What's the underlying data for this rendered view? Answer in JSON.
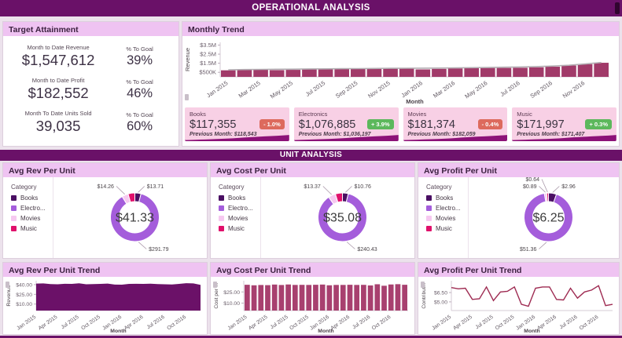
{
  "header": {
    "title": "OPERATIONAL ANALYSIS"
  },
  "section2": {
    "title": "UNIT ANALYSIS"
  },
  "target_attainment": {
    "title": "Target Attainment",
    "metrics": [
      {
        "label": "Month to Date Revenue",
        "value": "$1,547,612",
        "goal_label": "% To Goal",
        "goal": "39%"
      },
      {
        "label": "Month to Date Profit",
        "value": "$182,552",
        "goal_label": "% To Goal",
        "goal": "46%"
      },
      {
        "label": "Month To Date Units Sold",
        "value": "39,035",
        "goal_label": "% To Goal",
        "goal": "60%"
      }
    ]
  },
  "kpi_cards": [
    {
      "name": "Books",
      "value": "$117,355",
      "change": "- 1.0%",
      "direction": "down",
      "previous": "Previous Month: $118,543"
    },
    {
      "name": "Electronics",
      "value": "$1,076,885",
      "change": "+ 3.9%",
      "direction": "up",
      "previous": "Previous Month: $1,036,197"
    },
    {
      "name": "Movies",
      "value": "$181,374",
      "change": "- 0.4%",
      "direction": "down",
      "previous": "Previous Month: $182,059"
    },
    {
      "name": "Music",
      "value": "$171,997",
      "change": "+ 0.3%",
      "direction": "up",
      "previous": "Previous Month: $171,407"
    }
  ],
  "colors": {
    "accent": "#6a1168",
    "panel_header": "#efc3f2",
    "kpi_card_bg": "#f8d0e5",
    "kpi_wave": "#8c1278",
    "positive": "#5cb85c",
    "negative": "#dd6a5d",
    "monthly_bar": "#a13a69",
    "trend_line": "#b3aeb3",
    "books": "#4a0f63",
    "electronics": "#a45ddb",
    "movies": "#f6c8f0",
    "music": "#e0106b"
  },
  "chart_data": [
    {
      "id": "monthly-trend-chart",
      "type": "bar",
      "title": "Monthly Trend",
      "xlabel": "Month",
      "ylabel": "Revenue",
      "unit": "$M",
      "x": [
        "Jan 2015",
        "Feb 2015",
        "Mar 2015",
        "Apr 2015",
        "May 2015",
        "Jun 2015",
        "Jul 2015",
        "Aug 2015",
        "Sep 2015",
        "Oct 2015",
        "Nov 2015",
        "Dec 2015",
        "Jan 2016",
        "Feb 2016",
        "Mar 2016",
        "Apr 2016",
        "May 2016",
        "Jun 2016",
        "Jul 2016",
        "Aug 2016",
        "Sep 2016",
        "Oct 2016",
        "Nov 2016",
        "Dec 2016"
      ],
      "values": [
        0.72,
        0.79,
        0.83,
        0.74,
        0.77,
        0.86,
        0.88,
        0.88,
        0.9,
        0.92,
        0.92,
        0.93,
        0.82,
        0.88,
        0.93,
        0.96,
        0.98,
        0.98,
        1.0,
        1.05,
        1.12,
        1.25,
        1.4,
        1.55
      ],
      "trend_line": [
        0.78,
        0.8,
        0.82,
        0.84,
        0.85,
        0.87,
        0.88,
        0.9,
        0.91,
        0.92,
        0.94,
        0.95,
        0.96,
        0.97,
        0.99,
        1.01,
        1.03,
        1.06,
        1.09,
        1.13,
        1.19,
        1.28,
        1.42,
        1.58
      ],
      "ylim": [
        0,
        3.8
      ],
      "yticks": [
        {
          "v": 0.5,
          "label": "$500K"
        },
        {
          "v": 1.5,
          "label": "$1.5M"
        },
        {
          "v": 2.5,
          "label": "$2.5M"
        },
        {
          "v": 3.5,
          "label": "$3.5M"
        }
      ],
      "tick_every": 2,
      "color": "#a13a69",
      "legend_position": "collapsed"
    },
    {
      "id": "rev-donut-chart",
      "type": "pie",
      "title": "Avg Rev Per Unit",
      "center": "$41.33",
      "legend_title": "Category",
      "slices": [
        {
          "name": "Books",
          "display": "Books",
          "value": 13.71,
          "label": "$13.71",
          "color": "#4a0f63"
        },
        {
          "name": "Electronics",
          "display": "Electro...",
          "value": 291.79,
          "label": "$291.79",
          "color": "#a45ddb"
        },
        {
          "name": "Movies",
          "display": "Movies",
          "value": 14.26,
          "label": "$14.26",
          "color": "#f6c8f0"
        },
        {
          "name": "Music",
          "display": "Music",
          "value": 15.0,
          "label": "",
          "color": "#e0106b"
        }
      ]
    },
    {
      "id": "cost-donut-chart",
      "type": "pie",
      "title": "Avg Cost Per Unit",
      "center": "$35.08",
      "legend_title": "Category",
      "slices": [
        {
          "name": "Books",
          "display": "Books",
          "value": 10.76,
          "label": "$10.76",
          "color": "#4a0f63"
        },
        {
          "name": "Electronics",
          "display": "Electro...",
          "value": 240.43,
          "label": "$240.43",
          "color": "#a45ddb"
        },
        {
          "name": "Movies",
          "display": "Movies",
          "value": 13.37,
          "label": "$13.37",
          "color": "#f6c8f0"
        },
        {
          "name": "Music",
          "display": "Music",
          "value": 13.0,
          "label": "",
          "color": "#e0106b"
        }
      ]
    },
    {
      "id": "profit-donut-chart",
      "type": "pie",
      "title": "Avg Profit Per Unit",
      "center": "$6.25",
      "legend_title": "Category",
      "slices": [
        {
          "name": "Books",
          "display": "Books",
          "value": 2.96,
          "label": "$2.96",
          "color": "#4a0f63"
        },
        {
          "name": "Electronics",
          "display": "Electro...",
          "value": 51.36,
          "label": "$51.36",
          "color": "#a45ddb"
        },
        {
          "name": "Movies",
          "display": "Movies",
          "value": 0.89,
          "label": "$0.89",
          "color": "#f6c8f0"
        },
        {
          "name": "Music",
          "display": "Music",
          "value": 0.64,
          "label": "$0.64",
          "color": "#e0106b"
        }
      ]
    },
    {
      "id": "rev-trend-chart",
      "type": "area",
      "title": "Avg Rev Per Unit Trend",
      "xlabel": "Month",
      "ylabel": "Revenue",
      "x": [
        "Jan 2015",
        "Feb 2015",
        "Mar 2015",
        "Apr 2015",
        "May 2015",
        "Jun 2015",
        "Jul 2015",
        "Aug 2015",
        "Sep 2015",
        "Oct 2015",
        "Nov 2015",
        "Dec 2015",
        "Jan 2016",
        "Feb 2016",
        "Mar 2016",
        "Apr 2016",
        "May 2016",
        "Jun 2016",
        "Jul 2016",
        "Aug 2016",
        "Sep 2016",
        "Oct 2016",
        "Nov 2016",
        "Dec 2016"
      ],
      "values": [
        41.6,
        41.9,
        40.9,
        40.6,
        41.3,
        41.1,
        42.1,
        40.6,
        40.9,
        41.1,
        41.6,
        40.1,
        39.9,
        41.1,
        41.3,
        41.1,
        41.4,
        40.9,
        40.6,
        40.3,
        41.1,
        42.3,
        41.9,
        39.6
      ],
      "ylim": [
        0,
        46
      ],
      "yticks": [
        {
          "v": 10,
          "label": "$10.00"
        },
        {
          "v": 25,
          "label": "$25.00"
        },
        {
          "v": 40,
          "label": "$40.00"
        }
      ],
      "tick_every": 3,
      "color": "#6b1168"
    },
    {
      "id": "cost-trend-chart",
      "type": "bar",
      "title": "Avg Cost Per Unit Trend",
      "xlabel": "Month",
      "ylabel": "Cost per ...",
      "x": [
        "Jan 2015",
        "Feb 2015",
        "Mar 2015",
        "Apr 2015",
        "May 2015",
        "Jun 2015",
        "Jul 2015",
        "Aug 2015",
        "Sep 2015",
        "Oct 2015",
        "Nov 2015",
        "Dec 2015",
        "Jan 2016",
        "Feb 2016",
        "Mar 2016",
        "Apr 2016",
        "May 2016",
        "Jun 2016",
        "Jul 2016",
        "Aug 2016",
        "Sep 2016",
        "Oct 2016",
        "Nov 2016",
        "Dec 2016"
      ],
      "values": [
        34.6,
        33.9,
        34.3,
        34.1,
        34.9,
        34.3,
        35.0,
        34.4,
        34.5,
        34.4,
        34.6,
        34.9,
        33.9,
        34.4,
        34.4,
        34.6,
        34.4,
        34.5,
        33.7,
        35.3,
        33.3,
        35.0,
        35.4,
        34.6
      ],
      "ylim": [
        0,
        40
      ],
      "yticks": [
        {
          "v": 10,
          "label": "$10.00"
        },
        {
          "v": 25,
          "label": "$25.00"
        }
      ],
      "tick_every": 3,
      "color": "#a8406f"
    },
    {
      "id": "profit-trend-chart",
      "type": "line",
      "title": "Avg Profit Per Unit Trend",
      "xlabel": "Month",
      "ylabel": "Contribut...",
      "x": [
        "Jan 2015",
        "Feb 2015",
        "Mar 2015",
        "Apr 2015",
        "May 2015",
        "Jun 2015",
        "Jul 2015",
        "Aug 2015",
        "Sep 2015",
        "Oct 2015",
        "Nov 2015",
        "Dec 2015",
        "Jan 2016",
        "Feb 2016",
        "Mar 2016",
        "Apr 2016",
        "May 2016",
        "Jun 2016",
        "Jul 2016",
        "Aug 2016",
        "Sep 2016",
        "Oct 2016",
        "Nov 2016",
        "Dec 2016"
      ],
      "values": [
        7.3,
        7.1,
        7.2,
        5.4,
        5.5,
        7.4,
        5.2,
        6.6,
        6.7,
        7.4,
        4.6,
        4.3,
        7.2,
        7.4,
        7.4,
        5.4,
        5.3,
        7.2,
        5.6,
        6.6,
        6.9,
        7.6,
        4.4,
        4.6
      ],
      "ylim": [
        3.6,
        8.4
      ],
      "yticks": [
        {
          "v": 5,
          "label": "$5.00"
        },
        {
          "v": 6.5,
          "label": "$6.50"
        }
      ],
      "tick_every": 3,
      "color": "#9e2b52"
    }
  ]
}
